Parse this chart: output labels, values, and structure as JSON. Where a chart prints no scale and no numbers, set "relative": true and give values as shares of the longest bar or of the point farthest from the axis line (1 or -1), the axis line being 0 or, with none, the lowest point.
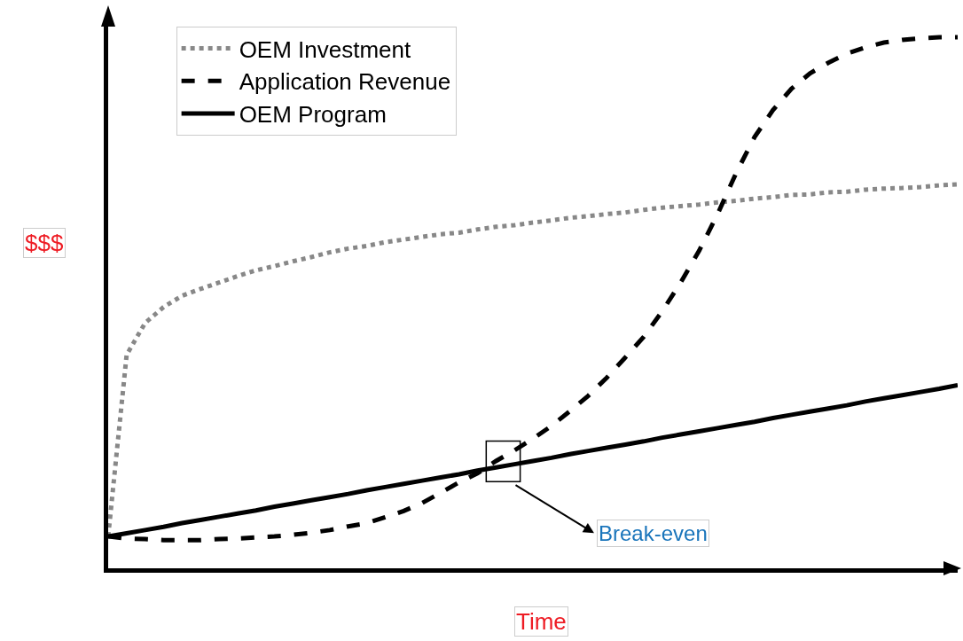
{
  "chart_data": {
    "type": "line",
    "relative": true,
    "xlabel": "Time",
    "ylabel": "$$$",
    "categories": [
      null,
      null,
      null,
      null,
      null,
      null,
      null,
      null,
      null,
      null,
      null,
      null,
      null,
      null,
      null,
      null,
      null,
      null,
      null,
      null,
      null,
      null,
      null,
      null,
      null,
      null,
      null,
      null,
      null,
      null,
      null,
      null,
      null,
      null,
      null,
      null,
      null,
      null,
      null,
      null,
      null,
      null,
      null,
      null,
      null,
      null,
      null
    ],
    "series": [
      {
        "name": "OEM Investment",
        "color": "#888888",
        "line_style": "dotted",
        "values": [
          0.06,
          0.402,
          0.462,
          0.492,
          0.513,
          0.526,
          0.538,
          0.55,
          0.561,
          0.569,
          0.578,
          0.586,
          0.595,
          0.602,
          0.607,
          0.614,
          0.619,
          0.624,
          0.629,
          0.632,
          0.638,
          0.643,
          0.646,
          0.651,
          0.655,
          0.66,
          0.663,
          0.667,
          0.67,
          0.675,
          0.679,
          0.682,
          0.685,
          0.689,
          0.692,
          0.696,
          0.699,
          0.703,
          0.704,
          0.708,
          0.709,
          0.713,
          0.715,
          0.716,
          0.718,
          0.721,
          0.723
        ]
      },
      {
        "name": "Application Revenue",
        "color": "#000000",
        "line_style": "dashed",
        "values": [
          0.06,
          0.056,
          0.055,
          0.053,
          0.053,
          0.053,
          0.055,
          0.056,
          0.058,
          0.06,
          0.063,
          0.067,
          0.072,
          0.079,
          0.085,
          0.096,
          0.108,
          0.123,
          0.142,
          0.162,
          0.179,
          0.202,
          0.222,
          0.244,
          0.268,
          0.296,
          0.325,
          0.359,
          0.397,
          0.436,
          0.484,
          0.538,
          0.598,
          0.667,
          0.744,
          0.812,
          0.863,
          0.903,
          0.932,
          0.952,
          0.969,
          0.981,
          0.99,
          0.995,
          0.998,
          1.0,
          1.0
        ]
      },
      {
        "name": "OEM Program",
        "color": "#000000",
        "line_style": "solid",
        "values": [
          0.06,
          0.066,
          0.072,
          0.078,
          0.085,
          0.091,
          0.097,
          0.103,
          0.109,
          0.116,
          0.122,
          0.128,
          0.134,
          0.14,
          0.147,
          0.153,
          0.159,
          0.165,
          0.171,
          0.177,
          0.184,
          0.19,
          0.196,
          0.202,
          0.208,
          0.215,
          0.221,
          0.227,
          0.233,
          0.239,
          0.246,
          0.252,
          0.258,
          0.264,
          0.27,
          0.276,
          0.283,
          0.289,
          0.295,
          0.301,
          0.307,
          0.314,
          0.32,
          0.326,
          0.332,
          0.338,
          0.345
        ]
      }
    ],
    "annotations": [
      "Break-even"
    ],
    "legend": "top left",
    "grid": false
  }
}
